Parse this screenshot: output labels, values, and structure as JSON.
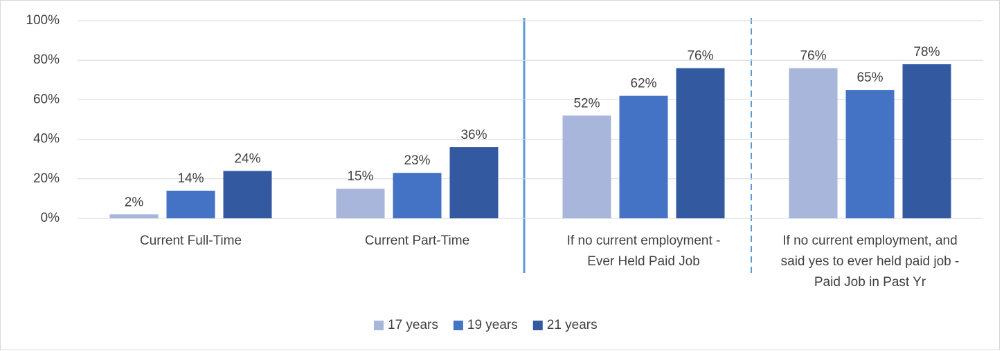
{
  "chart_data": {
    "type": "bar",
    "categories": [
      "Current Full-Time",
      "Current Part-Time",
      "If no current employment - Ever Held Paid Job",
      "If no current employment, and said yes to ever held paid job - Paid Job in Past Yr"
    ],
    "series": [
      {
        "name": "17 years",
        "color": "#a9b6db",
        "values": [
          2,
          15,
          52,
          76
        ],
        "value_labels": [
          "2%",
          "15%",
          "52%",
          "76%"
        ]
      },
      {
        "name": "19 years",
        "color": "#4472c4",
        "values": [
          14,
          23,
          62,
          65
        ],
        "value_labels": [
          "14%",
          "23%",
          "62%",
          "65%"
        ]
      },
      {
        "name": "21 years",
        "color": "#335aa0",
        "values": [
          24,
          36,
          76,
          78
        ],
        "value_labels": [
          "24%",
          "36%",
          "76%",
          "78%"
        ]
      }
    ],
    "ylim": [
      0,
      100
    ],
    "yticks": [
      {
        "value": 0,
        "label": "0%"
      },
      {
        "value": 20,
        "label": "20%"
      },
      {
        "value": 40,
        "label": "40%"
      },
      {
        "value": 60,
        "label": "60%"
      },
      {
        "value": 80,
        "label": "80%"
      },
      {
        "value": 100,
        "label": "100%"
      }
    ],
    "grid": true,
    "legend": "bottom"
  }
}
